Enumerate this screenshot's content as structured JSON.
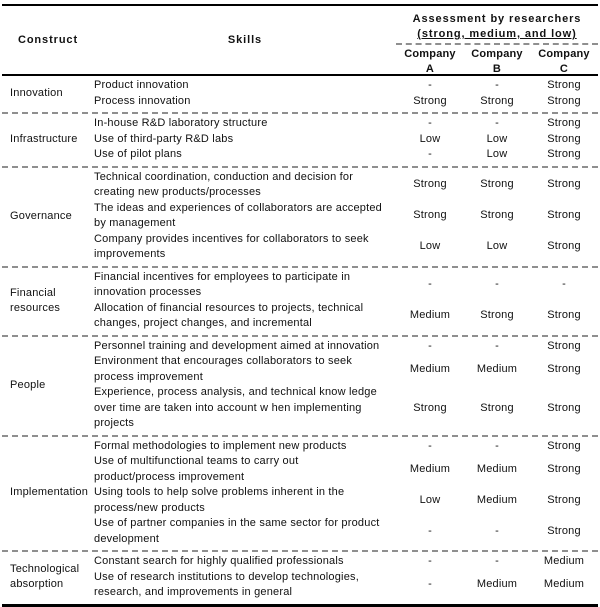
{
  "colors": {
    "rule": "#000000",
    "dashed_divider": "#8f8f8f",
    "text": "#111111",
    "background": "#ffffff"
  },
  "table": {
    "header": {
      "construct": "Construct",
      "skills": "Skills",
      "assessment_title": "Assessment by researchers",
      "assessment_subtitle": "(strong, medium, and low)",
      "company_word": "Company",
      "company_letters": [
        "A",
        "B",
        "C"
      ]
    },
    "sections": [
      {
        "construct": "Innovation",
        "skills": [
          {
            "label": "Product innovation",
            "a": "-",
            "b": "-",
            "c": "Strong"
          },
          {
            "label": "Process innovation",
            "a": "Strong",
            "b": "Strong",
            "c": "Strong"
          }
        ]
      },
      {
        "construct": "Infrastructure",
        "skills": [
          {
            "label": "In-house R&D laboratory structure",
            "a": "-",
            "b": "-",
            "c": "Strong"
          },
          {
            "label": "Use of third-party R&D labs",
            "a": "Low",
            "b": "Low",
            "c": "Strong"
          },
          {
            "label": "Use of pilot plans",
            "a": "-",
            "b": "Low",
            "c": "Strong"
          }
        ]
      },
      {
        "construct": "Governance",
        "skills": [
          {
            "label": "Technical coordination, conduction and decision for creating new products/processes",
            "a": "Strong",
            "b": "Strong",
            "c": "Strong"
          },
          {
            "label": "The ideas and experiences of collaborators are accepted by management",
            "a": "Strong",
            "b": "Strong",
            "c": "Strong"
          },
          {
            "label": "Company provides incentives for collaborators to seek improvements",
            "a": "Low",
            "b": "Low",
            "c": "Strong"
          }
        ]
      },
      {
        "construct": "Financial resources",
        "skills": [
          {
            "label": "Financial incentives for employees to participate in innovation processes",
            "a": "-",
            "b": "-",
            "c": "-"
          },
          {
            "label": "Allocation of financial resources to projects, technical changes, project changes, and incremental",
            "a": "Medium",
            "b": "Strong",
            "c": "Strong"
          }
        ]
      },
      {
        "construct": "People",
        "skills": [
          {
            "label": "Personnel training and development aimed at innovation",
            "a": "-",
            "b": "-",
            "c": "Strong"
          },
          {
            "label": "Environment that encourages collaborators to seek process improvement",
            "a": "Medium",
            "b": "Medium",
            "c": "Strong"
          },
          {
            "label": "Experience, process analysis, and technical know ledge over time are taken into account w hen implementing projects",
            "a": "Strong",
            "b": "Strong",
            "c": "Strong"
          }
        ]
      },
      {
        "construct": "Implementation",
        "skills": [
          {
            "label": "Formal methodologies to implement new products",
            "a": "-",
            "b": "-",
            "c": "Strong"
          },
          {
            "label": "Use of multifunctional teams to carry out product/process improvement",
            "a": "Medium",
            "b": "Medium",
            "c": "Strong"
          },
          {
            "label": "Using tools to help solve problems inherent in the process/new products",
            "a": "Low",
            "b": "Medium",
            "c": "Strong"
          },
          {
            "label": "Use of partner companies in the same sector for product development",
            "a": "-",
            "b": "-",
            "c": "Strong"
          }
        ]
      },
      {
        "construct": "Technological absorption",
        "skills": [
          {
            "label": "Constant search for highly qualified professionals",
            "a": "-",
            "b": "-",
            "c": "Medium"
          },
          {
            "label": "Use of research institutions to develop technologies, research, and improvements in general",
            "a": "-",
            "b": "Medium",
            "c": "Medium"
          }
        ]
      }
    ]
  }
}
